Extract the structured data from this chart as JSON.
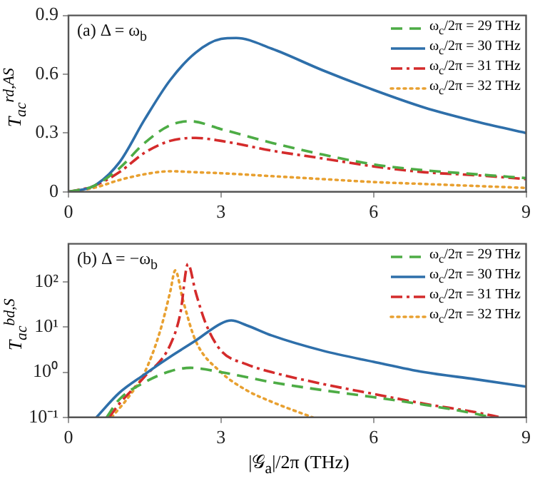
{
  "chart_data": [
    {
      "type": "line",
      "annotations": [
        "(a) Δ = ω$_{b}$"
      ],
      "ylabel": "T$_{ac}$$^{rd,AS}$",
      "xlim": [
        0,
        9
      ],
      "xticks": [
        0,
        3,
        6,
        9
      ],
      "ylim": [
        0,
        0.9
      ],
      "yticks": [
        0,
        0.3,
        0.6,
        0.9
      ],
      "grid": false,
      "legend": "top right",
      "marker": "none",
      "series": [
        {
          "name": "ω$_{c}$/2π = 29 THz",
          "color": "#4dac45",
          "line_style": "dashed",
          "x": [
            0,
            0.5,
            1,
            1.5,
            2,
            2.4,
            3,
            4,
            5,
            6,
            7,
            8,
            9
          ],
          "values": [
            0,
            0.03,
            0.12,
            0.25,
            0.34,
            0.36,
            0.32,
            0.25,
            0.19,
            0.14,
            0.11,
            0.09,
            0.07
          ]
        },
        {
          "name": "ω$_{c}$/2π = 30 THz",
          "color": "#2e6faa",
          "line_style": "solid",
          "x": [
            0,
            0.5,
            1,
            1.5,
            2,
            2.5,
            3,
            3.3,
            4,
            5,
            6,
            7,
            8,
            9
          ],
          "values": [
            0,
            0.03,
            0.15,
            0.37,
            0.57,
            0.71,
            0.78,
            0.785,
            0.73,
            0.62,
            0.52,
            0.43,
            0.36,
            0.3
          ]
        },
        {
          "name": "ω$_{c}$/2π = 31 THz",
          "color": "#d42b2b",
          "line_style": "dashdot",
          "x": [
            0,
            0.5,
            1,
            1.5,
            2,
            2.5,
            3,
            4,
            5,
            6,
            7,
            8,
            9
          ],
          "values": [
            0,
            0.03,
            0.1,
            0.2,
            0.26,
            0.275,
            0.26,
            0.21,
            0.17,
            0.13,
            0.1,
            0.085,
            0.065
          ]
        },
        {
          "name": "ω$_{c}$/2π = 32 THz",
          "color": "#e8a030",
          "line_style": "dotted",
          "x": [
            0,
            0.5,
            1,
            1.5,
            2,
            2.5,
            3,
            4,
            5,
            6,
            7,
            8,
            9
          ],
          "values": [
            0,
            0.02,
            0.06,
            0.09,
            0.105,
            0.1,
            0.095,
            0.08,
            0.065,
            0.05,
            0.04,
            0.03,
            0.02
          ]
        }
      ]
    },
    {
      "type": "line",
      "annotations": [
        "(b) Δ = −ω$_{b}$"
      ],
      "ylabel": "T$_{ac}$$^{bd,S}$",
      "xlabel": "|𝒢$_{a}$|/2π (THz)",
      "log": "y",
      "xlim": [
        0,
        9
      ],
      "xticks": [
        0,
        3,
        6,
        9
      ],
      "ylim": [
        0.1,
        700
      ],
      "yticks": [
        {
          "value": 0.1,
          "label": "10⁻¹"
        },
        {
          "value": 1,
          "label": "10⁰"
        },
        {
          "value": 10,
          "label": "10¹"
        },
        {
          "value": 100,
          "label": "10²"
        }
      ],
      "grid": false,
      "legend": "top right",
      "marker": "none",
      "series": [
        {
          "name": "ω$_{c}$/2π = 29 THz",
          "color": "#4dac45",
          "line_style": "dashed",
          "x": [
            0.75,
            1,
            1.5,
            2,
            2.4,
            3,
            4,
            5,
            6,
            7,
            8,
            8.3
          ],
          "values": [
            0.1,
            0.25,
            0.6,
            1.05,
            1.25,
            1,
            0.6,
            0.4,
            0.28,
            0.19,
            0.12,
            0.1
          ]
        },
        {
          "name": "ω$_{c}$/2π = 30 THz",
          "color": "#2e6faa",
          "line_style": "solid",
          "x": [
            0.55,
            1,
            1.5,
            2,
            2.5,
            3,
            3.2,
            3.5,
            4,
            5,
            6,
            7,
            8,
            9
          ],
          "values": [
            0.1,
            0.35,
            0.9,
            2.2,
            5,
            12,
            14,
            11,
            6.5,
            3,
            1.7,
            1,
            0.7,
            0.48
          ]
        },
        {
          "name": "ω$_{c}$/2π = 31 THz",
          "color": "#d42b2b",
          "line_style": "dashdot",
          "x": [
            0.8,
            1,
            1.5,
            2,
            2.2,
            2.35,
            2.5,
            2.7,
            3,
            3.5,
            4,
            5,
            6,
            7,
            8,
            8.5
          ],
          "values": [
            0.1,
            0.2,
            0.8,
            4,
            20,
            250,
            60,
            12,
            3,
            1.5,
            1,
            0.55,
            0.33,
            0.2,
            0.13,
            0.1
          ]
        },
        {
          "name": "ω$_{c}$/2π = 32 THz",
          "color": "#e8a030",
          "line_style": "dotted",
          "x": [
            0.85,
            1.2,
            1.5,
            1.8,
            2,
            2.1,
            2.25,
            2.5,
            3,
            3.5,
            4,
            4.8
          ],
          "values": [
            0.1,
            0.3,
            1,
            8,
            60,
            180,
            40,
            5,
            1,
            0.4,
            0.22,
            0.1
          ]
        }
      ]
    }
  ]
}
